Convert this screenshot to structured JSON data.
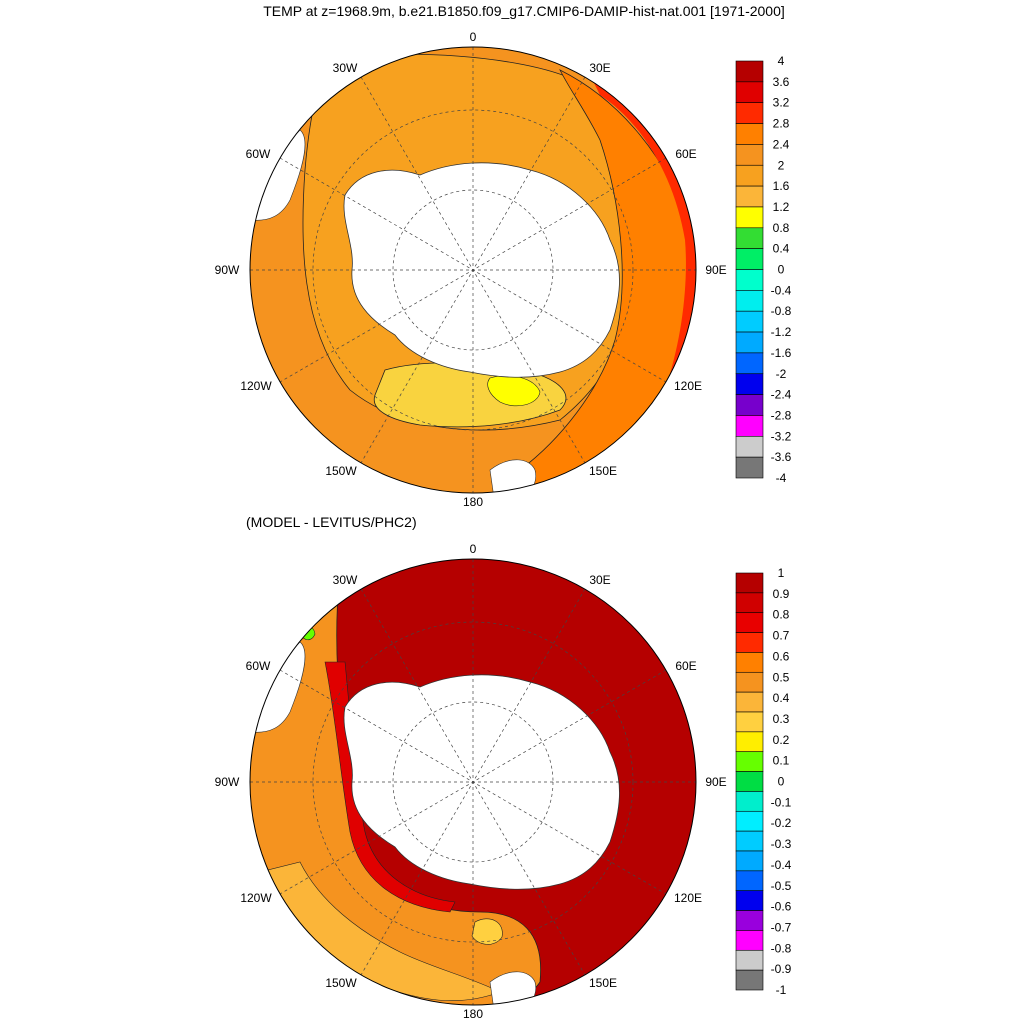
{
  "title": "TEMP at z=1968.9m, b.e21.B1850.f09_g17.CMIP6-DAMIP-hist-nat.001 [1971-2000]",
  "subtitle": "(MODEL - LEVITUS/PHC2)",
  "longitude_labels": {
    "0": "0",
    "30E": "30E",
    "60E": "60E",
    "90E": "90E",
    "120E": "120E",
    "150E": "150E",
    "180": "180",
    "150W": "150W",
    "120W": "120W",
    "90W": "90W",
    "60W": "60W",
    "30W": "30W"
  },
  "land_color": "#ffffff",
  "colorbars": {
    "top": {
      "labels": [
        "4",
        "3.6",
        "3.2",
        "2.8",
        "2.4",
        "2",
        "1.6",
        "1.2",
        "0.8",
        "0.4",
        "0",
        "-0.4",
        "-0.8",
        "-1.2",
        "-1.6",
        "-2",
        "-2.4",
        "-2.8",
        "-3.2",
        "-3.6",
        "-4"
      ],
      "colors": [
        "#b50000",
        "#e00000",
        "#ff2a00",
        "#ff8000",
        "#f5931f",
        "#f7a11f",
        "#fbb539",
        "#ffff00",
        "#33dd33",
        "#00ee66",
        "#00ffcc",
        "#00eeee",
        "#00ccff",
        "#00aaff",
        "#0066ff",
        "#0000ee",
        "#7700cc",
        "#ff00ff",
        "#cccccc",
        "#777777"
      ]
    },
    "bottom": {
      "labels": [
        "1",
        "0.9",
        "0.8",
        "0.7",
        "0.6",
        "0.5",
        "0.4",
        "0.3",
        "0.2",
        "0.1",
        "0",
        "-0.1",
        "-0.2",
        "-0.3",
        "-0.4",
        "-0.5",
        "-0.6",
        "-0.7",
        "-0.8",
        "-0.9",
        "-1"
      ],
      "colors": [
        "#b50000",
        "#d00000",
        "#e80000",
        "#ff2a00",
        "#ff8000",
        "#f5931f",
        "#fbb539",
        "#ffd040",
        "#ffee00",
        "#66ff00",
        "#00dd44",
        "#00eecc",
        "#00eeff",
        "#00ccff",
        "#00aaff",
        "#0066ff",
        "#0000ee",
        "#9900dd",
        "#ff00ff",
        "#cccccc",
        "#777777"
      ]
    }
  },
  "fields": {
    "top": {
      "background": "#f5931f",
      "zones": [
        "#f7a11f",
        "#fbb539",
        "#ff8000",
        "#ff2a00",
        "#f9d33f"
      ]
    },
    "bottom": {
      "background": "#b50000",
      "zones": [
        "#f5931f",
        "#fbb539",
        "#e00000",
        "#ffd040",
        "#66ff00"
      ]
    }
  }
}
